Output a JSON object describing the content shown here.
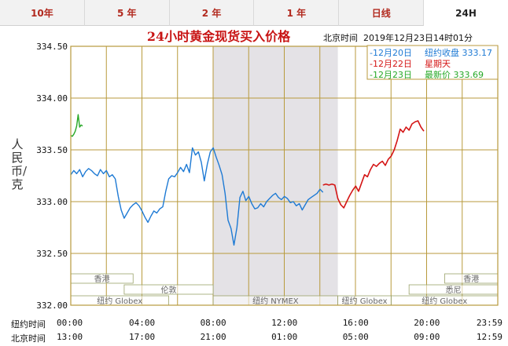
{
  "tabs": [
    {
      "label": "10年",
      "active": false
    },
    {
      "label": "5 年",
      "active": false
    },
    {
      "label": "2 年",
      "active": false
    },
    {
      "label": "1 年",
      "active": false
    },
    {
      "label": "日线",
      "active": false
    },
    {
      "label": "24H",
      "active": true
    }
  ],
  "colors": {
    "grid": "#b89a3c",
    "series_1220": "#1e7ad4",
    "series_1222": "#d41515",
    "series_1223": "#26a826",
    "highlight_band": "#e4e2e6",
    "title": "#c81414"
  },
  "chart_data": {
    "type": "line",
    "title": "24小时黄金现货买入价格",
    "timestamp": "北京时间  2019年12月23日14时01分",
    "ylabel": "人民币/克",
    "ylim": [
      332.0,
      334.5
    ],
    "y_ticks": [
      "334.50",
      "334.00",
      "333.50",
      "333.00",
      "332.50",
      "332.00"
    ],
    "x_range_minutes": [
      0,
      1439
    ],
    "x_rows": [
      {
        "label": "纽约时间",
        "ticks": [
          "00:00",
          "04:00",
          "08:00",
          "12:00",
          "16:00",
          "20:00",
          "23:59"
        ]
      },
      {
        "label": "北京时间",
        "ticks": [
          "13:00",
          "17:00",
          "21:00",
          "01:00",
          "05:00",
          "09:00",
          "12:59"
        ]
      }
    ],
    "legend": [
      {
        "date": "-12月20日",
        "text": "纽约收盘 333.17"
      },
      {
        "date": "-12月22日",
        "text": "星期天"
      },
      {
        "date": "-12月23日",
        "text": "最新价 333.69"
      }
    ],
    "highlight_band_minutes": [
      480,
      900
    ],
    "sessions": [
      {
        "name": "香港",
        "start": 0,
        "end": 210,
        "row": 0
      },
      {
        "name": "伦敦",
        "start": 180,
        "end": 480,
        "row": 1
      },
      {
        "name": "纽约 Globex",
        "start": 0,
        "end": 330,
        "row": 2
      },
      {
        "name": "纽约 NYMEX",
        "start": 480,
        "end": 900,
        "row": 2
      },
      {
        "name": "纽约 Globex",
        "start": 900,
        "end": 1080,
        "row": 2
      },
      {
        "name": "香港",
        "start": 1260,
        "end": 1439,
        "row": 0
      },
      {
        "name": "悉尼",
        "start": 1140,
        "end": 1439,
        "row": 1
      },
      {
        "name": "纽约 Globex",
        "start": 1080,
        "end": 1439,
        "row": 2
      }
    ],
    "series": [
      {
        "name": "12月20日",
        "color": "#1e7ad4",
        "points": [
          [
            0,
            333.26
          ],
          [
            10,
            333.3
          ],
          [
            20,
            333.27
          ],
          [
            30,
            333.31
          ],
          [
            40,
            333.24
          ],
          [
            50,
            333.29
          ],
          [
            60,
            333.32
          ],
          [
            70,
            333.3
          ],
          [
            80,
            333.27
          ],
          [
            90,
            333.25
          ],
          [
            100,
            333.31
          ],
          [
            110,
            333.27
          ],
          [
            120,
            333.3
          ],
          [
            130,
            333.24
          ],
          [
            140,
            333.26
          ],
          [
            150,
            333.22
          ],
          [
            160,
            333.05
          ],
          [
            170,
            332.92
          ],
          [
            180,
            332.84
          ],
          [
            190,
            332.89
          ],
          [
            200,
            332.94
          ],
          [
            210,
            332.97
          ],
          [
            220,
            332.99
          ],
          [
            230,
            332.96
          ],
          [
            240,
            332.91
          ],
          [
            250,
            332.85
          ],
          [
            260,
            332.8
          ],
          [
            270,
            332.86
          ],
          [
            280,
            332.91
          ],
          [
            290,
            332.89
          ],
          [
            300,
            332.93
          ],
          [
            310,
            332.95
          ],
          [
            320,
            333.1
          ],
          [
            330,
            333.22
          ],
          [
            340,
            333.25
          ],
          [
            350,
            333.24
          ],
          [
            360,
            333.28
          ],
          [
            370,
            333.33
          ],
          [
            380,
            333.29
          ],
          [
            390,
            333.36
          ],
          [
            400,
            333.28
          ],
          [
            410,
            333.52
          ],
          [
            420,
            333.45
          ],
          [
            430,
            333.48
          ],
          [
            440,
            333.38
          ],
          [
            450,
            333.2
          ],
          [
            460,
            333.36
          ],
          [
            470,
            333.48
          ],
          [
            480,
            333.52
          ],
          [
            490,
            333.43
          ],
          [
            500,
            333.35
          ],
          [
            510,
            333.26
          ],
          [
            520,
            333.08
          ],
          [
            530,
            332.82
          ],
          [
            540,
            332.74
          ],
          [
            550,
            332.58
          ],
          [
            560,
            332.75
          ],
          [
            570,
            333.04
          ],
          [
            580,
            333.1
          ],
          [
            590,
            333.01
          ],
          [
            600,
            333.05
          ],
          [
            610,
            332.98
          ],
          [
            620,
            332.93
          ],
          [
            630,
            332.94
          ],
          [
            640,
            332.98
          ],
          [
            650,
            332.95
          ],
          [
            660,
            333.0
          ],
          [
            670,
            333.03
          ],
          [
            680,
            333.06
          ],
          [
            690,
            333.08
          ],
          [
            700,
            333.04
          ],
          [
            710,
            333.02
          ],
          [
            720,
            333.05
          ],
          [
            730,
            333.03
          ],
          [
            740,
            332.99
          ],
          [
            750,
            333.0
          ],
          [
            760,
            332.96
          ],
          [
            770,
            332.98
          ],
          [
            780,
            332.92
          ],
          [
            790,
            332.97
          ],
          [
            800,
            333.02
          ],
          [
            810,
            333.04
          ],
          [
            820,
            333.06
          ],
          [
            830,
            333.08
          ],
          [
            840,
            333.12
          ],
          [
            850,
            333.09
          ]
        ]
      },
      {
        "name": "12月22日",
        "color": "#d41515",
        "points": [
          [
            850,
            333.16
          ],
          [
            860,
            333.17
          ],
          [
            870,
            333.16
          ],
          [
            880,
            333.17
          ],
          [
            890,
            333.16
          ],
          [
            900,
            333.03
          ],
          [
            910,
            332.97
          ],
          [
            920,
            332.94
          ],
          [
            930,
            333.0
          ],
          [
            940,
            333.06
          ],
          [
            950,
            333.11
          ],
          [
            960,
            333.15
          ],
          [
            970,
            333.1
          ],
          [
            980,
            333.18
          ],
          [
            990,
            333.26
          ],
          [
            1000,
            333.24
          ],
          [
            1010,
            333.31
          ],
          [
            1020,
            333.36
          ],
          [
            1030,
            333.34
          ],
          [
            1040,
            333.37
          ],
          [
            1050,
            333.39
          ],
          [
            1060,
            333.35
          ],
          [
            1070,
            333.41
          ],
          [
            1080,
            333.44
          ],
          [
            1090,
            333.5
          ],
          [
            1100,
            333.59
          ],
          [
            1110,
            333.7
          ],
          [
            1120,
            333.67
          ],
          [
            1130,
            333.72
          ],
          [
            1140,
            333.69
          ],
          [
            1150,
            333.75
          ],
          [
            1160,
            333.77
          ],
          [
            1170,
            333.78
          ],
          [
            1180,
            333.72
          ],
          [
            1190,
            333.68
          ]
        ]
      },
      {
        "name": "12月23日",
        "color": "#26a826",
        "points": [
          [
            0,
            333.64
          ],
          [
            5,
            333.63
          ],
          [
            10,
            333.65
          ],
          [
            15,
            333.68
          ],
          [
            20,
            333.73
          ],
          [
            25,
            333.84
          ],
          [
            30,
            333.72
          ],
          [
            35,
            333.74
          ],
          [
            40,
            333.73
          ]
        ]
      }
    ]
  }
}
